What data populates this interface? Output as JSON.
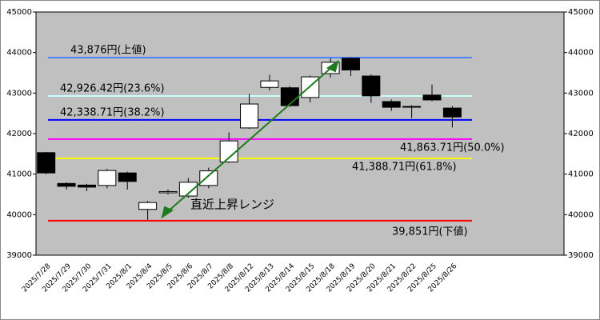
{
  "chart_data": {
    "type": "candlestick",
    "categories": [
      "2025/7/28",
      "2025/7/29",
      "2025/7/30",
      "2025/7/31",
      "2025/8/1",
      "2025/8/4",
      "2025/8/5",
      "2025/8/6",
      "2025/8/7",
      "2025/8/8",
      "2025/8/12",
      "2025/8/13",
      "2025/8/14",
      "2025/8/15",
      "2025/8/18",
      "2025/8/19",
      "2025/8/20",
      "2025/8/21",
      "2025/8/22",
      "2025/8/25",
      "2025/8/26",
      null,
      null,
      null,
      null,
      null
    ],
    "open": [
      41530,
      40770,
      40730,
      40720,
      41030,
      40130,
      40540,
      40460,
      40720,
      41300,
      42140,
      43140,
      43130,
      42890,
      43480,
      43860,
      43420,
      42790,
      42670,
      42950,
      42630,
      null,
      null,
      null,
      null,
      null
    ],
    "high": [
      41550,
      40800,
      40760,
      41130,
      41060,
      40340,
      40620,
      40900,
      41160,
      42030,
      42980,
      43450,
      43170,
      43430,
      43860,
      43880,
      43460,
      42840,
      42700,
      43210,
      42680,
      null,
      null,
      null,
      null,
      null
    ],
    "low": [
      41000,
      40620,
      40580,
      40650,
      40620,
      39870,
      40500,
      40420,
      40650,
      41280,
      42120,
      43060,
      42660,
      42770,
      43380,
      43420,
      42760,
      42560,
      42380,
      42800,
      42150,
      null,
      null,
      null,
      null,
      null
    ],
    "close": [
      41030,
      40700,
      40680,
      41090,
      40820,
      40300,
      40570,
      40800,
      41080,
      41820,
      42730,
      43300,
      42690,
      43400,
      43760,
      43570,
      42930,
      42650,
      42660,
      42830,
      42410,
      null,
      null,
      null,
      null,
      null
    ],
    "up_color": "#ffffff",
    "down_color": "#000000",
    "levels": [
      {
        "value": 43876,
        "label": "43,876円(上値)",
        "color": "#4f81ff"
      },
      {
        "value": 42926.42,
        "label": "42,926.42円(23.6%)",
        "color": "#ccffff"
      },
      {
        "value": 42338.71,
        "label": "42,338.71円(38.2%)",
        "color": "#0000ff"
      },
      {
        "value": 41863.71,
        "label": "41,863.71円(50.0%)",
        "color": "#ff00ff"
      },
      {
        "value": 41388.71,
        "label": "41,388.71円(61.8%)",
        "color": "#ffff00"
      },
      {
        "value": 39851,
        "label": "39,851円(下値)",
        "color": "#ff0000"
      }
    ],
    "annotation": "直近上昇レンジ",
    "ylim": [
      39000,
      45000
    ],
    "yticks": [
      39000,
      40000,
      41000,
      42000,
      43000,
      44000,
      45000
    ]
  }
}
